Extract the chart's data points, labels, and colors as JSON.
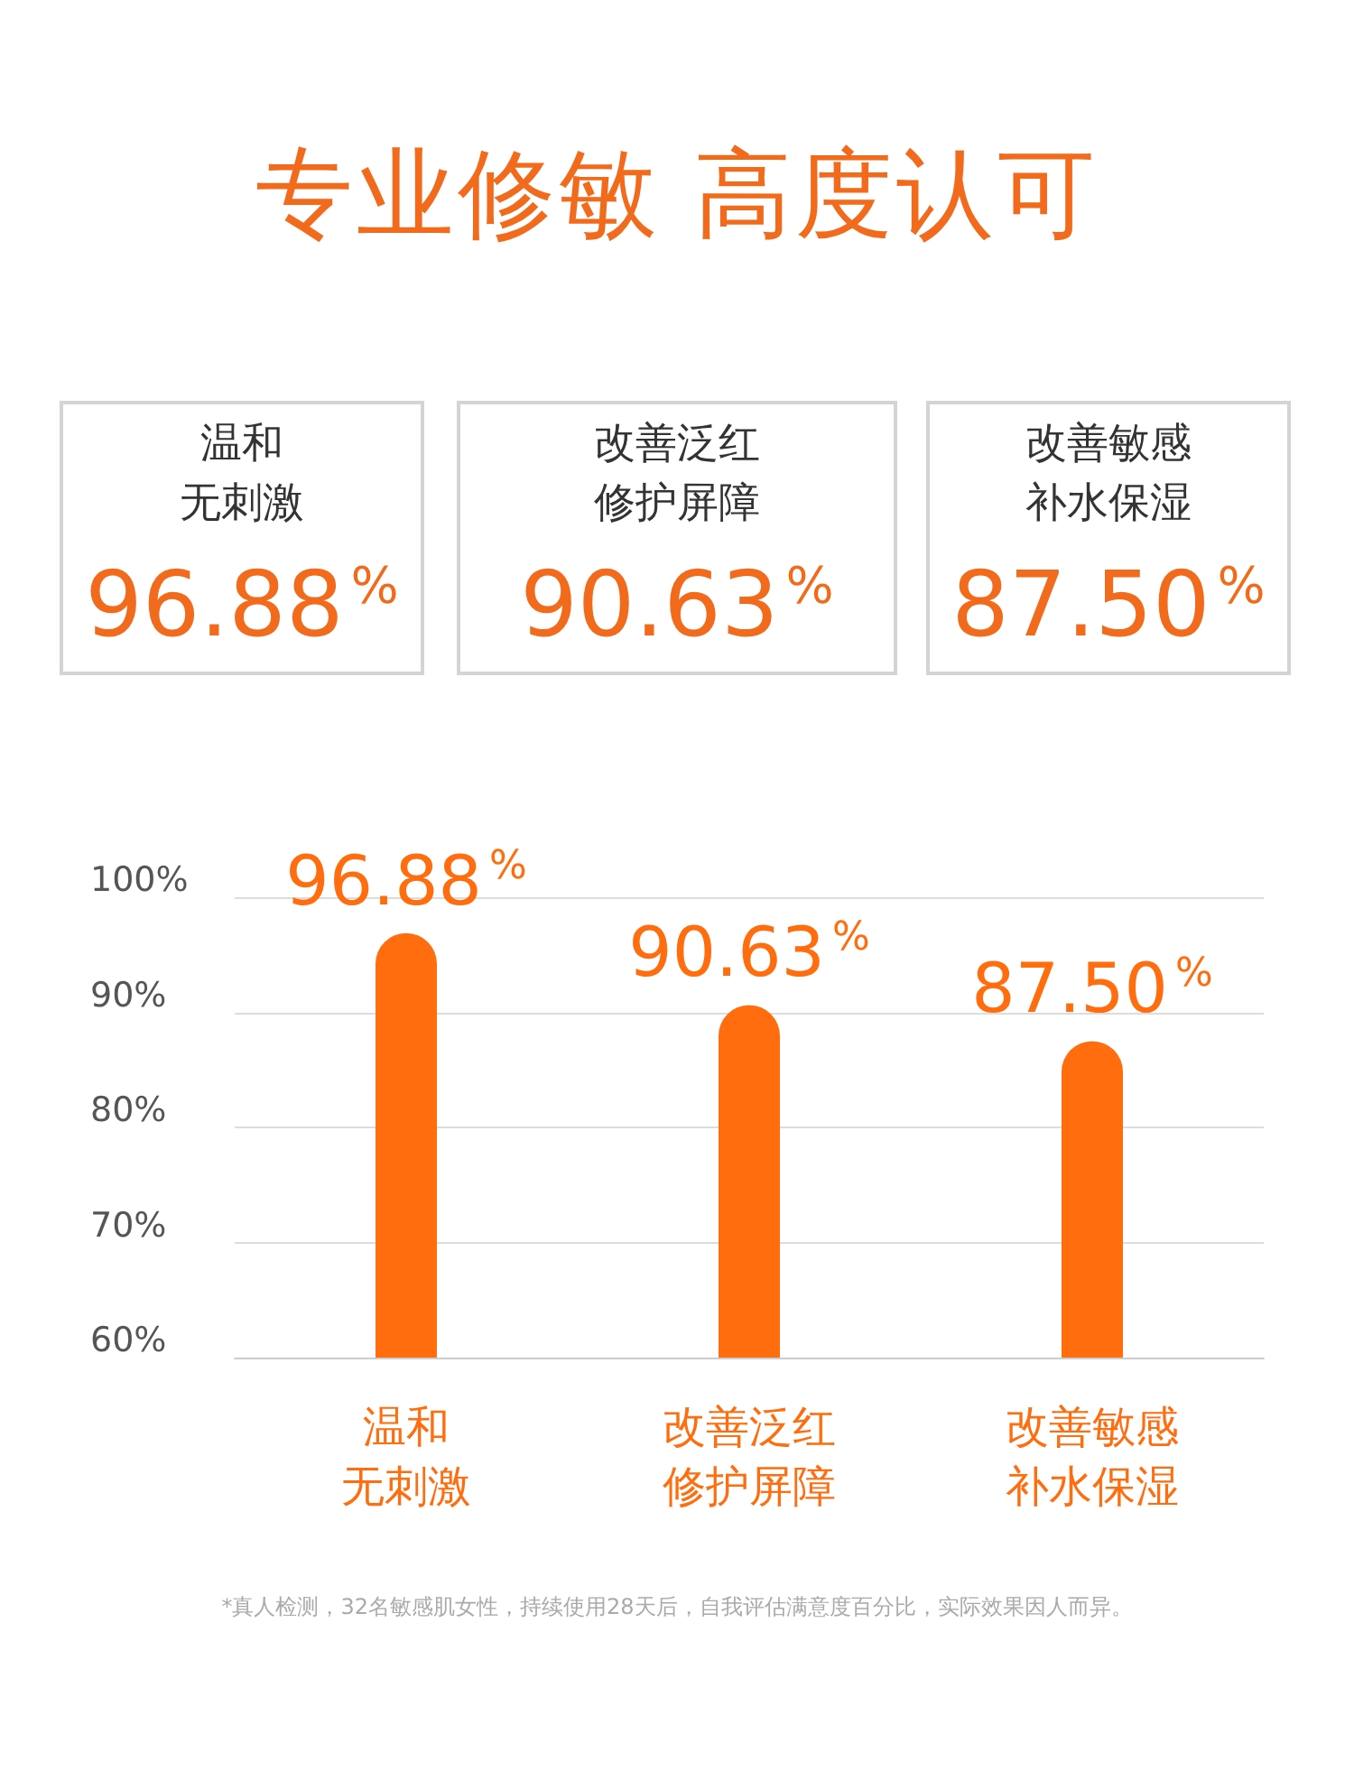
{
  "chart_data": [
    {
      "type": "other",
      "title": "专业修敏 高度认可",
      "categories": [
        "温和无刺激",
        "改善泛红修护屏障",
        "改善敏感补水保湿"
      ],
      "value_labels": [
        "96.88$^{%}$",
        "90.63$^{%}$",
        "87.50$^{%}$"
      ]
    },
    {
      "type": "bar",
      "categories": [
        "温和无刺激",
        "改善泛红修护屏障",
        "改善敏感补水保湿"
      ],
      "values": [
        96.88,
        90.63,
        87.5
      ],
      "value_labels": [
        "96.88$^{%}$",
        "90.63$^{%}$",
        "87.50$^{%}$"
      ],
      "color": "#ff6d0f",
      "ylim": [
        60,
        100
      ],
      "yticks": [
        {
          "value": 60,
          "label": "60%"
        },
        {
          "value": 70,
          "label": "70%"
        },
        {
          "value": 80,
          "label": "80%"
        },
        {
          "value": 90,
          "label": "90%"
        },
        {
          "value": 100,
          "label": "100%"
        }
      ],
      "grid": "y",
      "annotations": [
        "*真人检测，32名敏感肌女性，持续使用28天后，自我评估满意度百分比，实际效果因人而异。"
      ]
    }
  ]
}
